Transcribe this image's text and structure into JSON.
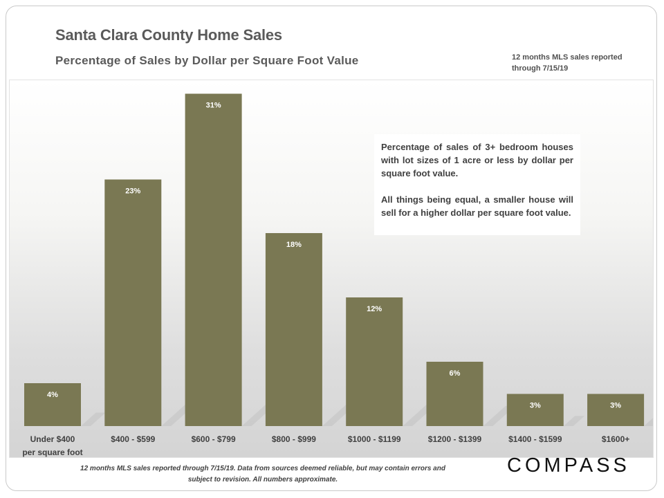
{
  "header": {
    "title": "Santa Clara County Home Sales",
    "subtitle": "Percentage of Sales by Dollar  per Square  Foot Value",
    "source_note": "12 months MLS sales reported through 7/15/19"
  },
  "annotation": {
    "paragraph1": "Percentage of sales of 3+ bedroom houses with lot sizes of 1 acre or less by dollar per square foot value.",
    "paragraph2": "All things being equal, a smaller house will sell for a higher dollar per square foot value."
  },
  "footer": {
    "disclaimer": "12 months MLS sales reported through 7/15/19. Data from sources deemed reliable, but may contain errors and subject to revision. All numbers approximate."
  },
  "logo": {
    "text": "COMPASS"
  },
  "colors": {
    "bar": "#7a7853",
    "bar_label": "#ffffff",
    "text": "#404040"
  },
  "chart_data": {
    "type": "bar",
    "title": "Santa Clara County Home Sales",
    "subtitle": "Percentage of Sales by Dollar  per Square  Foot Value",
    "xlabel": "",
    "ylabel": "",
    "categories": [
      "Under $400 per square foot",
      "$400 - $599",
      "$600 - $799",
      "$800 - $999",
      "$1000 - $1199",
      "$1200 - $1399",
      "$1400 - $1599",
      "$1600+"
    ],
    "values": [
      4,
      23,
      31,
      18,
      12,
      6,
      3,
      3
    ],
    "data_labels": [
      "4%",
      "23%",
      "31%",
      "18%",
      "12%",
      "6%",
      "3%",
      "3%"
    ],
    "ylim": [
      0,
      32
    ],
    "grid": false,
    "legend": "none"
  }
}
